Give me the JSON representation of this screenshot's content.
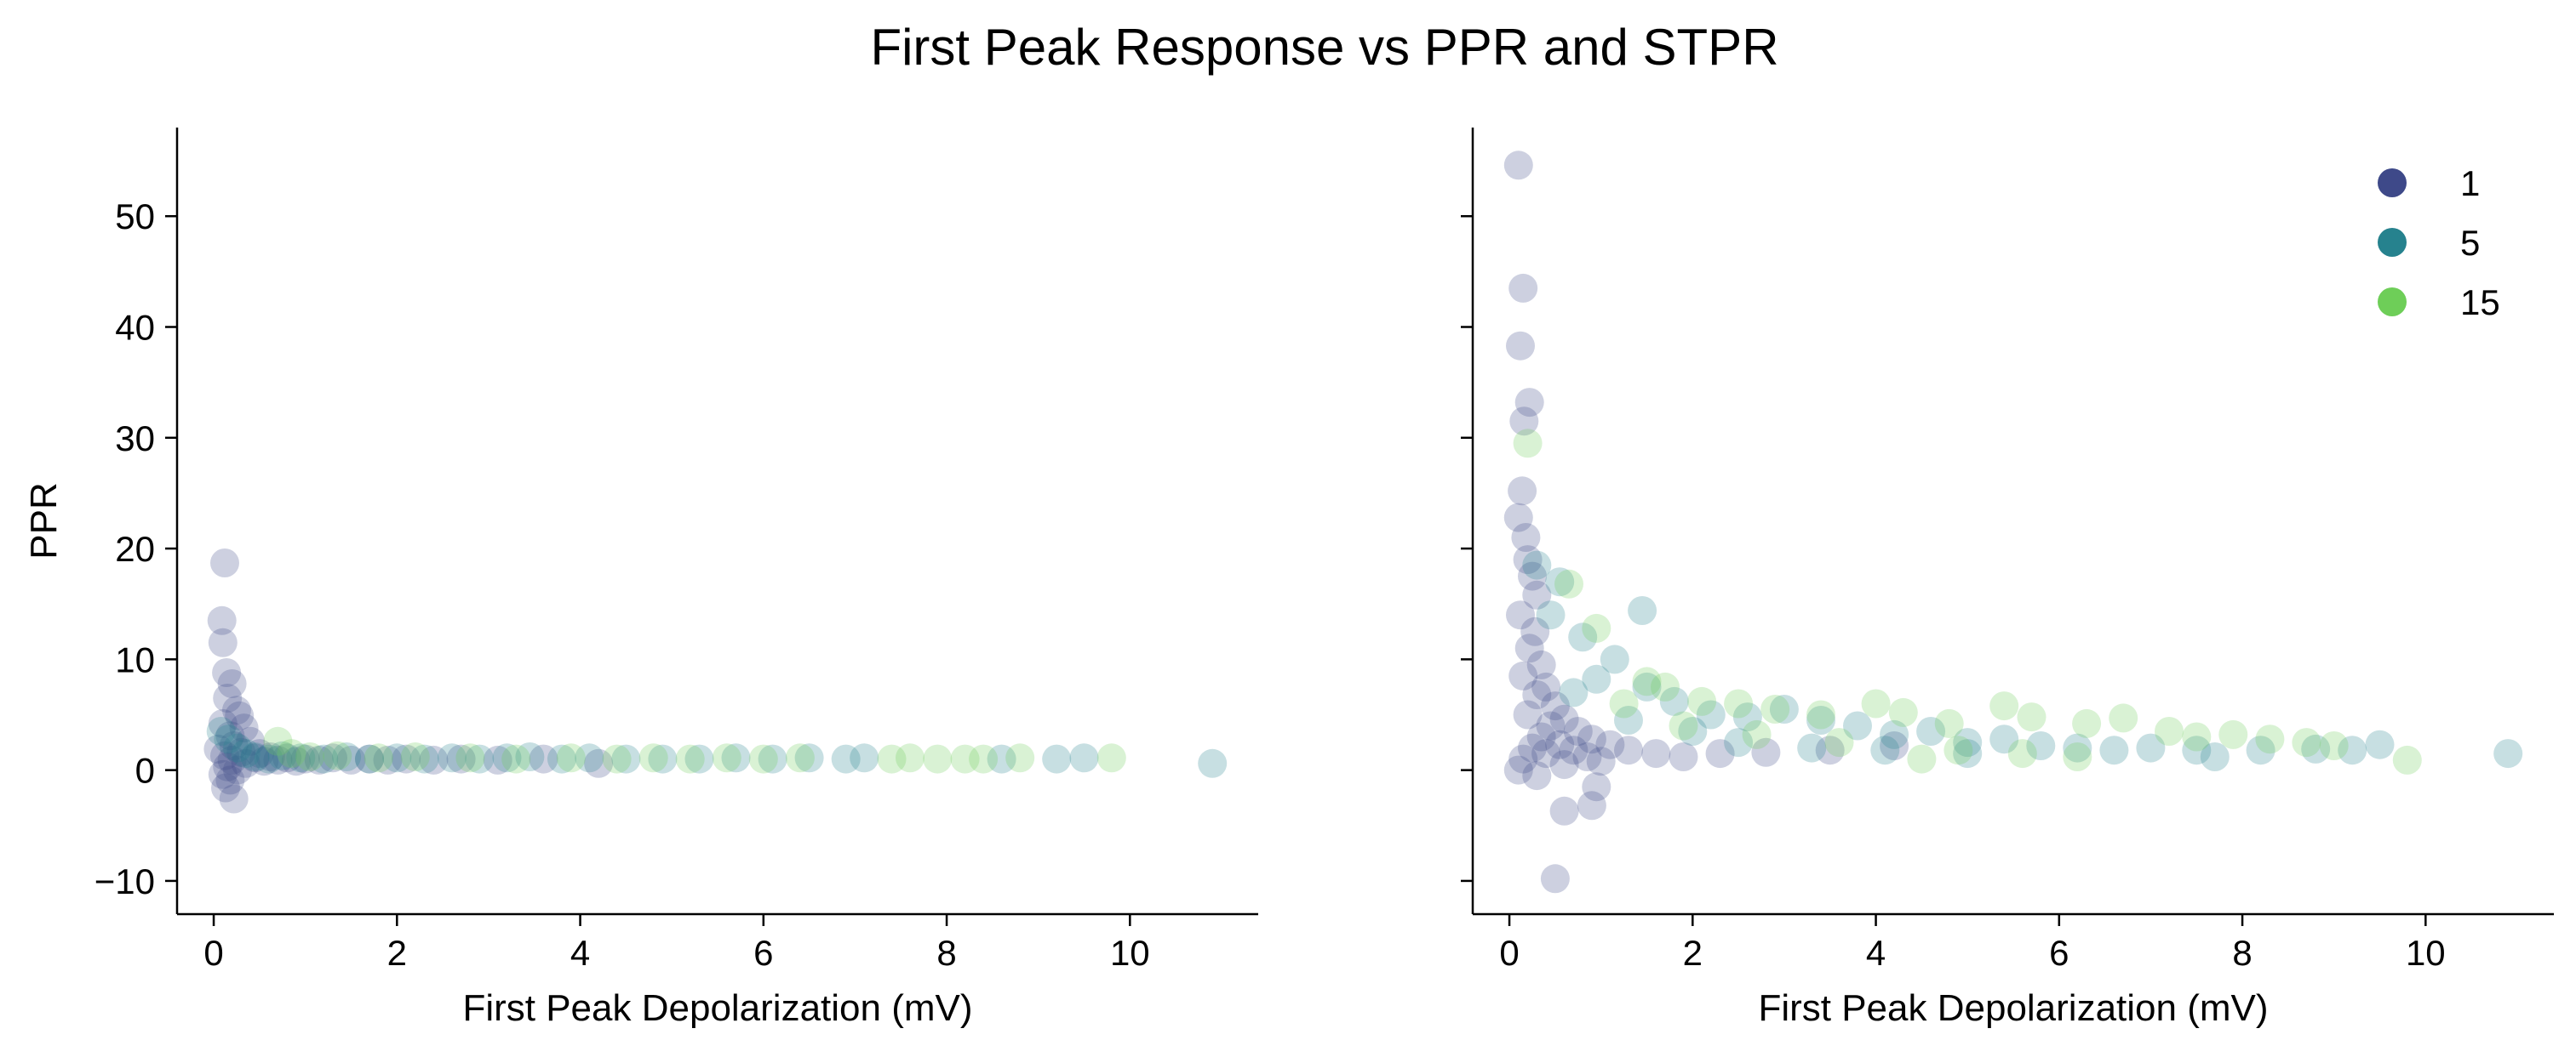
{
  "figure": {
    "title": "First Peak Response vs PPR and STPR"
  },
  "chart_data": [
    {
      "type": "scatter",
      "xlabel": "First Peak Depolarization (mV)",
      "ylabel": "PPR",
      "xlim": [
        -0.4,
        11.4
      ],
      "ylim": [
        -13,
        58
      ],
      "xticks": [
        0,
        2,
        4,
        6,
        8,
        10
      ],
      "yticks": [
        -10,
        0,
        10,
        20,
        30,
        40,
        50
      ],
      "grid": false,
      "legend": false,
      "series": [
        {
          "name": "1",
          "color": "#3e4989",
          "points": [
            [
              0.12,
              18.7
            ],
            [
              0.09,
              13.5
            ],
            [
              0.1,
              11.5
            ],
            [
              0.14,
              8.8
            ],
            [
              0.2,
              7.8
            ],
            [
              0.15,
              6.5
            ],
            [
              0.25,
              5.4
            ],
            [
              0.28,
              4.9
            ],
            [
              0.1,
              4.2
            ],
            [
              0.33,
              3.8
            ],
            [
              0.18,
              3.1
            ],
            [
              0.4,
              2.6
            ],
            [
              0.22,
              2.2
            ],
            [
              0.05,
              1.9
            ],
            [
              0.3,
              1.6
            ],
            [
              0.12,
              1.3
            ],
            [
              0.45,
              1.1
            ],
            [
              0.2,
              0.9
            ],
            [
              0.35,
              0.6
            ],
            [
              0.15,
              0.3
            ],
            [
              0.26,
              0.0
            ],
            [
              0.1,
              -0.4
            ],
            [
              0.18,
              -0.9
            ],
            [
              0.13,
              -1.6
            ],
            [
              0.22,
              -2.6
            ],
            [
              0.5,
              1.5
            ],
            [
              0.55,
              0.8
            ],
            [
              0.62,
              1.2
            ],
            [
              0.7,
              0.9
            ],
            [
              0.8,
              1.1
            ],
            [
              0.9,
              0.8
            ],
            [
              1.0,
              1.0
            ],
            [
              1.15,
              0.9
            ],
            [
              1.3,
              1.1
            ],
            [
              1.5,
              0.9
            ],
            [
              1.7,
              1.0
            ],
            [
              1.9,
              0.9
            ],
            [
              2.1,
              1.0
            ],
            [
              2.4,
              0.9
            ],
            [
              2.7,
              1.0
            ],
            [
              3.1,
              0.9
            ],
            [
              3.6,
              1.0
            ],
            [
              4.2,
              0.6
            ]
          ]
        },
        {
          "name": "5",
          "color": "#26828e",
          "points": [
            [
              0.08,
              3.5
            ],
            [
              0.16,
              2.8
            ],
            [
              0.26,
              2.0
            ],
            [
              0.35,
              1.5
            ],
            [
              0.45,
              1.2
            ],
            [
              0.6,
              1.0
            ],
            [
              0.75,
              1.3
            ],
            [
              0.95,
              1.1
            ],
            [
              1.2,
              1.0
            ],
            [
              1.45,
              1.2
            ],
            [
              1.7,
              1.0
            ],
            [
              2.0,
              1.1
            ],
            [
              2.3,
              1.0
            ],
            [
              2.6,
              1.1
            ],
            [
              2.9,
              1.0
            ],
            [
              3.2,
              1.1
            ],
            [
              3.45,
              1.2
            ],
            [
              3.8,
              1.0
            ],
            [
              4.1,
              1.1
            ],
            [
              4.5,
              1.0
            ],
            [
              4.9,
              1.0
            ],
            [
              5.3,
              1.0
            ],
            [
              5.7,
              1.1
            ],
            [
              6.1,
              1.0
            ],
            [
              6.5,
              1.1
            ],
            [
              6.9,
              1.0
            ],
            [
              7.1,
              1.1
            ],
            [
              8.6,
              1.0
            ],
            [
              9.2,
              1.0
            ],
            [
              9.5,
              1.1
            ],
            [
              10.9,
              0.6
            ]
          ]
        },
        {
          "name": "15",
          "color": "#6ece58",
          "points": [
            [
              0.7,
              2.6
            ],
            [
              0.85,
              1.5
            ],
            [
              1.05,
              1.2
            ],
            [
              1.35,
              1.3
            ],
            [
              1.8,
              1.1
            ],
            [
              2.2,
              1.2
            ],
            [
              2.8,
              1.1
            ],
            [
              3.3,
              1.0
            ],
            [
              3.9,
              1.1
            ],
            [
              4.4,
              1.0
            ],
            [
              4.8,
              1.1
            ],
            [
              5.2,
              1.0
            ],
            [
              5.6,
              1.1
            ],
            [
              6.0,
              1.0
            ],
            [
              6.4,
              1.1
            ],
            [
              7.4,
              1.0
            ],
            [
              7.6,
              1.1
            ],
            [
              7.9,
              1.0
            ],
            [
              8.2,
              1.0
            ],
            [
              8.4,
              1.0
            ],
            [
              8.8,
              1.1
            ],
            [
              9.8,
              1.1
            ]
          ]
        }
      ]
    },
    {
      "type": "scatter",
      "xlabel": "First Peak Depolarization (mV)",
      "ylabel": "",
      "xlim": [
        -0.4,
        11.4
      ],
      "ylim": [
        -13,
        58
      ],
      "xticks": [
        0,
        2,
        4,
        6,
        8,
        10
      ],
      "yticks": [
        -10,
        0,
        10,
        20,
        30,
        40,
        50
      ],
      "grid": false,
      "legend": true,
      "legend_position": "top-right",
      "series": [
        {
          "name": "1",
          "color": "#3e4989",
          "points": [
            [
              0.1,
              54.6
            ],
            [
              0.15,
              43.5
            ],
            [
              0.12,
              38.3
            ],
            [
              0.22,
              33.2
            ],
            [
              0.16,
              31.5
            ],
            [
              0.14,
              25.2
            ],
            [
              0.1,
              22.8
            ],
            [
              0.18,
              21.0
            ],
            [
              0.2,
              19.0
            ],
            [
              0.25,
              17.5
            ],
            [
              0.3,
              15.8
            ],
            [
              0.12,
              14.0
            ],
            [
              0.28,
              12.5
            ],
            [
              0.22,
              11.0
            ],
            [
              0.35,
              9.5
            ],
            [
              0.15,
              8.5
            ],
            [
              0.4,
              7.5
            ],
            [
              0.3,
              6.8
            ],
            [
              0.5,
              5.8
            ],
            [
              0.2,
              5.0
            ],
            [
              0.6,
              4.6
            ],
            [
              0.45,
              4.0
            ],
            [
              0.75,
              3.5
            ],
            [
              0.35,
              3.0
            ],
            [
              0.9,
              2.8
            ],
            [
              0.55,
              2.3
            ],
            [
              0.25,
              2.0
            ],
            [
              1.1,
              2.3
            ],
            [
              0.7,
              1.8
            ],
            [
              0.4,
              1.5
            ],
            [
              1.3,
              1.8
            ],
            [
              0.85,
              1.2
            ],
            [
              0.15,
              1.0
            ],
            [
              1.6,
              1.5
            ],
            [
              1.0,
              0.8
            ],
            [
              0.6,
              0.5
            ],
            [
              0.1,
              0.0
            ],
            [
              1.9,
              1.2
            ],
            [
              0.3,
              -0.5
            ],
            [
              0.95,
              -1.5
            ],
            [
              0.9,
              -3.2
            ],
            [
              0.6,
              -3.7
            ],
            [
              0.5,
              -9.8
            ],
            [
              2.3,
              1.5
            ],
            [
              2.8,
              1.6
            ],
            [
              3.5,
              1.8
            ],
            [
              4.2,
              2.2
            ]
          ]
        },
        {
          "name": "5",
          "color": "#26828e",
          "points": [
            [
              0.3,
              18.5
            ],
            [
              0.55,
              17.0
            ],
            [
              1.45,
              14.4
            ],
            [
              0.45,
              14.0
            ],
            [
              0.8,
              12.0
            ],
            [
              1.15,
              10.0
            ],
            [
              0.95,
              8.2
            ],
            [
              1.5,
              7.5
            ],
            [
              0.7,
              7.0
            ],
            [
              1.8,
              6.2
            ],
            [
              2.2,
              5.0
            ],
            [
              1.3,
              4.5
            ],
            [
              2.6,
              4.8
            ],
            [
              3.0,
              5.5
            ],
            [
              3.4,
              4.5
            ],
            [
              2.0,
              3.5
            ],
            [
              3.8,
              4.0
            ],
            [
              4.2,
              3.2
            ],
            [
              2.5,
              2.5
            ],
            [
              4.6,
              3.5
            ],
            [
              5.0,
              2.5
            ],
            [
              3.3,
              2.0
            ],
            [
              5.4,
              2.8
            ],
            [
              5.8,
              2.2
            ],
            [
              4.1,
              1.8
            ],
            [
              6.2,
              2.0
            ],
            [
              6.6,
              1.8
            ],
            [
              5.0,
              1.5
            ],
            [
              7.0,
              2.0
            ],
            [
              7.5,
              1.8
            ],
            [
              7.7,
              1.2
            ],
            [
              8.2,
              1.8
            ],
            [
              8.8,
              1.9
            ],
            [
              9.2,
              1.8
            ],
            [
              9.5,
              2.3
            ],
            [
              10.9,
              1.5
            ]
          ]
        },
        {
          "name": "15",
          "color": "#6ece58",
          "points": [
            [
              0.2,
              29.5
            ],
            [
              0.65,
              16.8
            ],
            [
              0.95,
              12.8
            ],
            [
              1.5,
              8.0
            ],
            [
              1.7,
              7.5
            ],
            [
              1.25,
              6.0
            ],
            [
              2.1,
              6.2
            ],
            [
              2.5,
              6.0
            ],
            [
              2.9,
              5.5
            ],
            [
              1.9,
              4.0
            ],
            [
              3.4,
              5.0
            ],
            [
              4.0,
              6.0
            ],
            [
              4.3,
              5.2
            ],
            [
              2.7,
              3.2
            ],
            [
              4.8,
              4.2
            ],
            [
              5.4,
              5.8
            ],
            [
              3.6,
              2.5
            ],
            [
              5.7,
              4.8
            ],
            [
              6.3,
              4.2
            ],
            [
              6.7,
              4.7
            ],
            [
              4.9,
              1.8
            ],
            [
              7.2,
              3.5
            ],
            [
              7.5,
              3.0
            ],
            [
              5.6,
              1.5
            ],
            [
              7.9,
              3.2
            ],
            [
              8.3,
              2.8
            ],
            [
              8.7,
              2.5
            ],
            [
              6.2,
              1.2
            ],
            [
              9.0,
              2.2
            ],
            [
              4.5,
              1.0
            ],
            [
              9.8,
              0.9
            ]
          ]
        }
      ]
    }
  ]
}
